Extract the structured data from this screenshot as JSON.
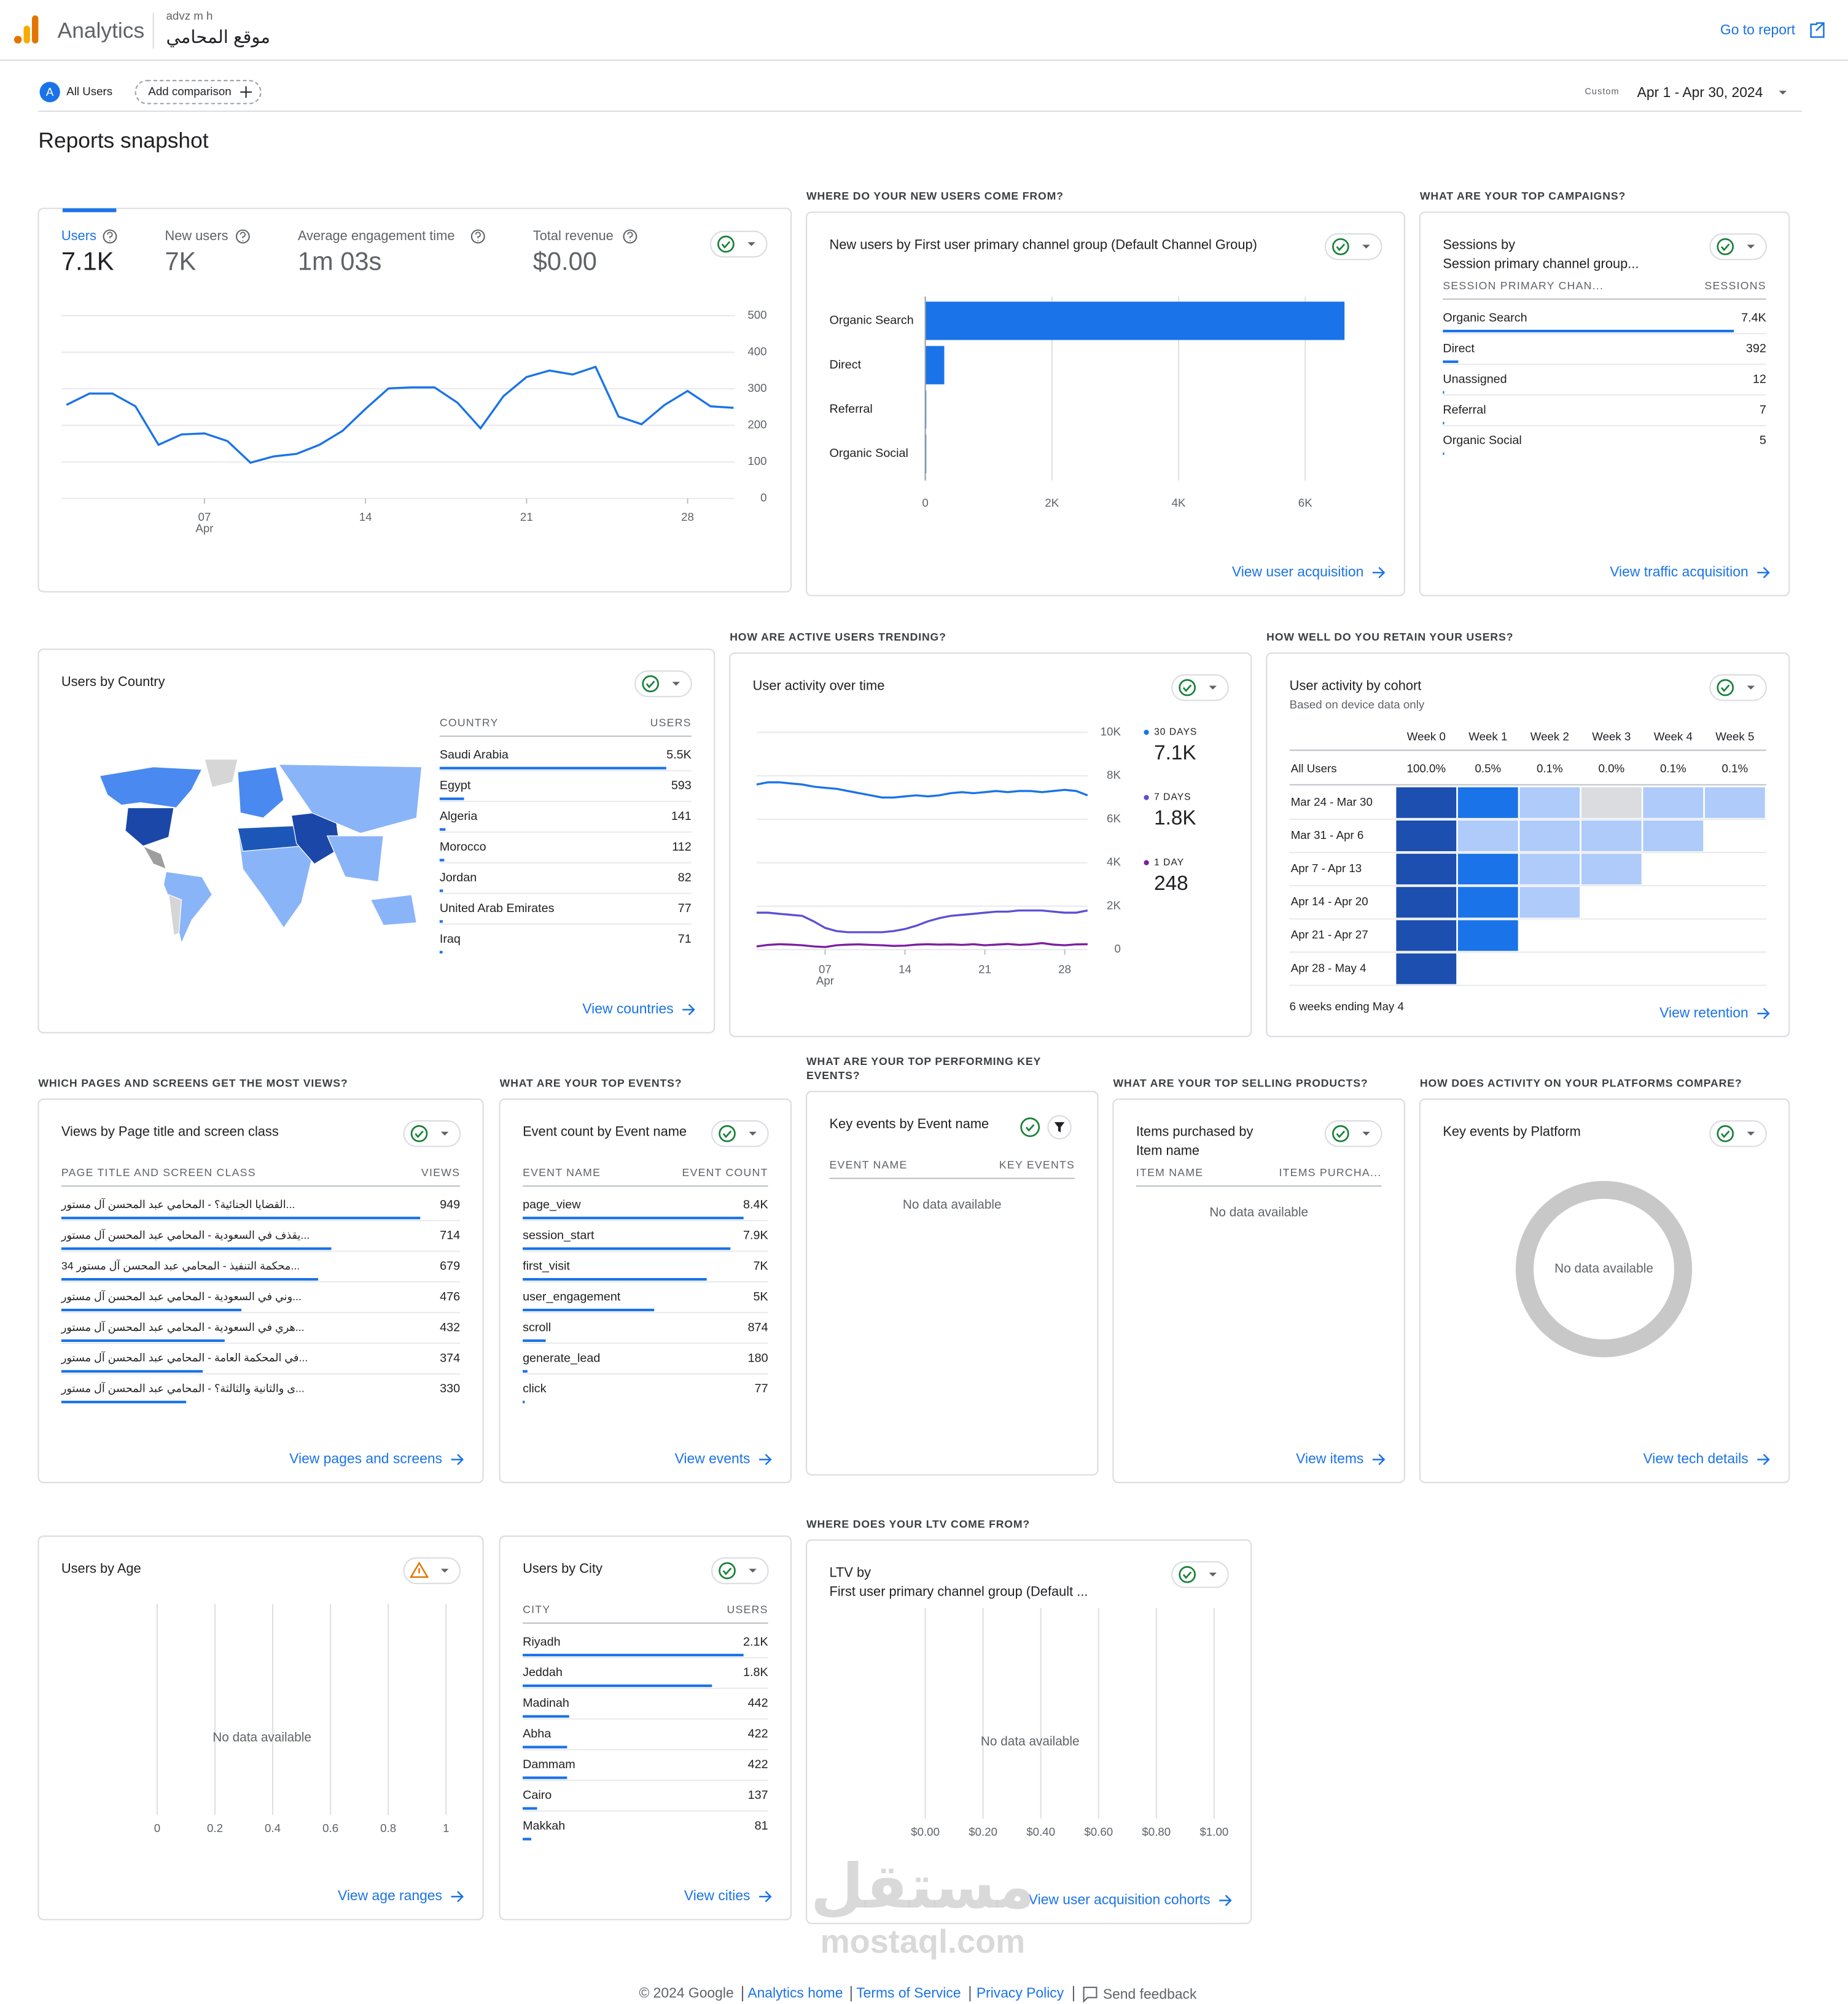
{
  "header": {
    "app": "Analytics",
    "account": "advz m h",
    "property": "موقع المحامي",
    "go_to_report": "Go to report"
  },
  "toolbar": {
    "segment_badge": "A",
    "segment": "All Users",
    "add_comparison": "Add comparison",
    "date_label": "Custom",
    "date_range": "Apr 1 - Apr 30, 2024"
  },
  "title": "Reports snapshot",
  "cards": [
    {
      "type": "overview",
      "metrics": [
        {
          "label": "Users",
          "value": "7.1K"
        },
        {
          "label": "New users",
          "value": "7K"
        },
        {
          "label": "Average engagement time",
          "value": "1m 03s"
        },
        {
          "label": "Total revenue",
          "value": "$0.00"
        }
      ],
      "chart": {
        "type": "line",
        "x": [
          1,
          2,
          3,
          4,
          5,
          6,
          7,
          8,
          9,
          10,
          11,
          12,
          13,
          14,
          15,
          16,
          17,
          18,
          19,
          20,
          21,
          22,
          23,
          24,
          25,
          26,
          27,
          28,
          29,
          30
        ],
        "values": [
          256,
          287,
          287,
          252,
          147,
          175,
          178,
          157,
          98,
          115,
          122,
          147,
          185,
          245,
          301,
          304,
          304,
          262,
          192,
          280,
          332,
          350,
          339,
          360,
          224,
          203,
          256,
          294,
          252,
          248
        ],
        "color": "#1a73e8",
        "xlim": [
          1,
          30
        ],
        "xticks": [
          {
            "value": 7,
            "label": "07"
          },
          14,
          21,
          28
        ],
        "x_month": "Apr",
        "ylim": [
          0,
          500
        ],
        "yticks": [
          0,
          100,
          200,
          300,
          400,
          500
        ]
      }
    },
    {
      "type": "bar",
      "heading": "WHERE DO YOUR NEW USERS COME FROM?",
      "title": "New users by First user primary channel group (Default Channel Group)",
      "categories": [
        "Organic Search",
        "Direct",
        "Referral",
        "Organic Social"
      ],
      "values": [
        6620,
        300,
        7,
        5
      ],
      "color": "#1a73e8",
      "xlim": [
        0,
        6700
      ],
      "xticks": [
        0,
        {
          "value": 2000,
          "label": "2K"
        },
        {
          "value": 4000,
          "label": "4K"
        },
        {
          "value": 6000,
          "label": "6K"
        }
      ],
      "link": "View user acquisition"
    },
    {
      "type": "table",
      "heading": "WHAT ARE YOUR TOP CAMPAIGNS?",
      "title": [
        "Sessions by",
        "Session primary channel group..."
      ],
      "columns": [
        "SESSION PRIMARY CHAN...",
        "SESSIONS"
      ],
      "categories": [
        "Organic Search",
        "Direct",
        "Unassigned",
        "Referral",
        "Organic Social"
      ],
      "values": [
        7400,
        392,
        12,
        7,
        5
      ],
      "value_labels": [
        "7.4K",
        "392",
        "12",
        "7",
        "5"
      ],
      "link": "View traffic acquisition"
    },
    {
      "type": "table",
      "title": "Users by Country",
      "columns": [
        "COUNTRY",
        "USERS"
      ],
      "categories": [
        "Saudi Arabia",
        "Egypt",
        "Algeria",
        "Morocco",
        "Jordan",
        "United Arab Emirates",
        "Iraq"
      ],
      "values": [
        5500,
        593,
        141,
        112,
        82,
        77,
        71
      ],
      "value_labels": [
        "5.5K",
        "593",
        "141",
        "112",
        "82",
        "77",
        "71"
      ],
      "link": "View countries"
    },
    {
      "type": "line",
      "heading": "HOW ARE ACTIVE USERS TRENDING?",
      "title": "User activity over time",
      "x": [
        1,
        2,
        3,
        4,
        5,
        6,
        7,
        8,
        9,
        10,
        11,
        12,
        13,
        14,
        15,
        16,
        17,
        18,
        19,
        20,
        21,
        22,
        23,
        24,
        25,
        26,
        27,
        28,
        29,
        30
      ],
      "xlim": [
        1,
        30
      ],
      "xticks": [
        {
          "value": 7,
          "label": "07"
        },
        14,
        21,
        28
      ],
      "x_month": "Apr",
      "ylim": [
        0,
        10000
      ],
      "yticks": [
        0,
        {
          "value": 2000,
          "label": "2K"
        },
        {
          "value": 4000,
          "label": "4K"
        },
        {
          "value": 6000,
          "label": "6K"
        },
        {
          "value": 8000,
          "label": "8K"
        },
        {
          "value": 10000,
          "label": "10K"
        }
      ],
      "series": [
        {
          "name": "30 DAYS",
          "color": "#1a73e8",
          "total": 7100,
          "total_label": "7.1K",
          "values": [
            7600,
            7700,
            7700,
            7650,
            7600,
            7500,
            7450,
            7400,
            7300,
            7200,
            7100,
            7000,
            7000,
            7050,
            7100,
            7050,
            7100,
            7200,
            7250,
            7200,
            7250,
            7300,
            7250,
            7300,
            7300,
            7250,
            7300,
            7350,
            7300,
            7100
          ]
        },
        {
          "name": "7 DAYS",
          "color": "#5b4fd6",
          "total": 1800,
          "total_label": "1.8K",
          "values": [
            1700,
            1700,
            1650,
            1600,
            1550,
            1300,
            1000,
            850,
            800,
            800,
            800,
            800,
            850,
            950,
            1100,
            1300,
            1450,
            1550,
            1600,
            1650,
            1700,
            1750,
            1750,
            1800,
            1800,
            1800,
            1750,
            1700,
            1700,
            1800
          ]
        },
        {
          "name": "1 DAY",
          "color": "#7b1fa2",
          "total": 248,
          "total_label": "248",
          "values": [
            150,
            220,
            250,
            230,
            200,
            150,
            120,
            200,
            230,
            240,
            220,
            200,
            170,
            180,
            230,
            250,
            230,
            240,
            220,
            250,
            200,
            230,
            260,
            220,
            240,
            300,
            230,
            200,
            240,
            248
          ]
        }
      ]
    },
    {
      "type": "cohort",
      "heading": "HOW WELL DO YOU RETAIN YOUR USERS?",
      "title": "User activity by cohort",
      "subtitle": "Based on device data only",
      "columns": [
        "Week 0",
        "Week 1",
        "Week 2",
        "Week 3",
        "Week 4",
        "Week 5"
      ],
      "total_label": "All Users",
      "total_values": [
        100,
        0.5,
        0.1,
        0,
        0.1,
        0.1
      ],
      "total_value_labels": [
        "100.0%",
        "0.5%",
        "0.1%",
        "0.0%",
        "0.1%",
        "0.1%"
      ],
      "rows": [
        "Mar 24 - Mar 30",
        "Mar 31 - Apr 6",
        "Apr 7 - Apr 13",
        "Apr 14 - Apr 20",
        "Apr 21 - Apr 27",
        "Apr 28 - May 4"
      ],
      "values": [
        [
          100,
          0.9,
          0.3,
          0,
          0.2,
          0.2
        ],
        [
          100,
          0.3,
          0.3,
          0.3,
          0.3
        ],
        [
          100,
          0.8,
          0.3,
          0.3
        ],
        [
          100,
          0.8,
          0.2
        ],
        [
          100,
          0.8
        ],
        [
          100
        ]
      ],
      "footnote": "6 weeks ending May 4",
      "link": "View retention"
    },
    {
      "type": "table",
      "heading": "WHICH PAGES AND SCREENS GET THE MOST VIEWS?",
      "title": "Views by Page title and screen class",
      "columns": [
        "PAGE TITLE AND SCREEN CLASS",
        "VIEWS"
      ],
      "categories": [
        "القضايا الجنائية؟ - المحامي عبد المحسن آل مستور...",
        "يقذف في السعودية - المحامي عبد المحسن آل مستور...",
        "34 محكمة التنفيذ - المحامي عبد المحسن آل مستور...",
        "وني في السعودية - المحامي عبد المحسن آل مستور...",
        "هري في السعودية - المحامي عبد المحسن آل مستور...",
        "في المحكمة العامة - المحامي عبد المحسن آل مستور...",
        "ى والثانية والثالثة؟ - المحامي عبد المحسن آل مستور..."
      ],
      "values": [
        949,
        714,
        679,
        476,
        432,
        374,
        330
      ],
      "value_labels": [
        "949",
        "714",
        "679",
        "476",
        "432",
        "374",
        "330"
      ],
      "link": "View pages and screens"
    },
    {
      "type": "table",
      "heading": "WHAT ARE YOUR TOP EVENTS?",
      "title": "Event count by Event name",
      "columns": [
        "EVENT NAME",
        "EVENT COUNT"
      ],
      "categories": [
        "page_view",
        "session_start",
        "first_visit",
        "user_engagement",
        "scroll",
        "generate_lead",
        "click"
      ],
      "values": [
        8400,
        7900,
        7000,
        5000,
        874,
        180,
        77
      ],
      "value_labels": [
        "8.4K",
        "7.9K",
        "7K",
        "5K",
        "874",
        "180",
        "77"
      ],
      "link": "View events"
    },
    {
      "type": "table",
      "heading": [
        "WHAT ARE YOUR TOP PERFORMING KEY",
        "EVENTS?"
      ],
      "title": "Key events by Event name",
      "columns": [
        "EVENT NAME",
        "KEY EVENTS"
      ],
      "no_data": "No data available"
    },
    {
      "type": "table",
      "heading": "WHAT ARE YOUR TOP SELLING PRODUCTS?",
      "title": [
        "Items purchased by",
        "Item name"
      ],
      "columns": [
        "ITEM NAME",
        "ITEMS PURCHA..."
      ],
      "no_data": "No data available",
      "link": "View items"
    },
    {
      "type": "pie",
      "heading": "HOW DOES ACTIVITY ON YOUR PLATFORMS COMPARE?",
      "title": "Key events by Platform",
      "no_data": "No data available",
      "link": "View tech details"
    },
    {
      "type": "bar",
      "title": "Users by Age",
      "status": "warning",
      "xlim": [
        0,
        1
      ],
      "xticks": [
        0,
        0.2,
        0.4,
        0.6,
        0.8,
        1
      ],
      "no_data": "No data available",
      "link": "View age ranges"
    },
    {
      "type": "table",
      "title": "Users by City",
      "columns": [
        "CITY",
        "USERS"
      ],
      "categories": [
        "Riyadh",
        "Jeddah",
        "Madinah",
        "Abha",
        "Dammam",
        "Cairo",
        "Makkah"
      ],
      "values": [
        2100,
        1800,
        442,
        422,
        422,
        137,
        81
      ],
      "value_labels": [
        "2.1K",
        "1.8K",
        "442",
        "422",
        "422",
        "137",
        "81"
      ],
      "link": "View cities"
    },
    {
      "type": "bar",
      "heading": "WHERE DOES YOUR LTV COME FROM?",
      "title": [
        "LTV by",
        "First user primary channel group (Default ..."
      ],
      "xlim": [
        0,
        1
      ],
      "xticks": [
        {
          "value": 0,
          "label": "$0.00"
        },
        {
          "value": 0.2,
          "label": "$0.20"
        },
        {
          "value": 0.4,
          "label": "$0.40"
        },
        {
          "value": 0.6,
          "label": "$0.60"
        },
        {
          "value": 0.8,
          "label": "$0.80"
        },
        {
          "value": 1,
          "label": "$1.00"
        }
      ],
      "no_data": "No data available",
      "link": "View user acquisition cohorts"
    }
  ],
  "watermark": [
    "مستقل",
    "mostaql.com"
  ],
  "footer": {
    "copyright": "© 2024 Google",
    "links": [
      "Analytics home",
      "Terms of Service",
      "Privacy Policy"
    ],
    "feedback": "Send feedback"
  }
}
